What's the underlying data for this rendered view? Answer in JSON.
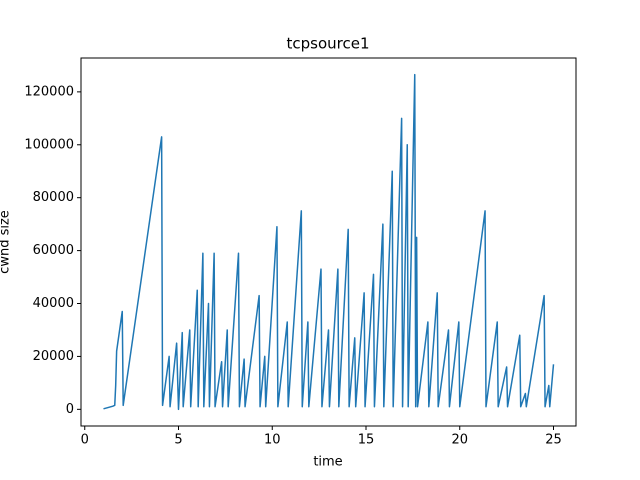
{
  "chart_data": {
    "type": "line",
    "title": "tcpsource1",
    "xlabel": "time",
    "ylabel": "cwnd size",
    "color": "#1f77b4",
    "x": [
      1.0,
      1.5,
      1.6,
      1.65,
      1.7,
      2.0,
      2.05,
      4.1,
      4.15,
      4.5,
      4.55,
      4.9,
      5.0,
      5.2,
      5.25,
      5.6,
      5.65,
      6.0,
      6.05,
      6.3,
      6.35,
      6.6,
      6.65,
      6.9,
      6.95,
      7.3,
      7.35,
      7.6,
      7.65,
      8.2,
      8.25,
      8.5,
      8.55,
      9.3,
      9.35,
      9.6,
      9.65,
      10.25,
      10.3,
      10.8,
      10.85,
      11.55,
      11.6,
      11.9,
      11.95,
      12.6,
      12.65,
      13.0,
      13.05,
      13.5,
      13.55,
      14.05,
      14.1,
      14.4,
      14.45,
      14.9,
      14.95,
      15.4,
      15.45,
      15.9,
      15.95,
      16.4,
      16.45,
      16.9,
      16.95,
      17.2,
      17.25,
      17.6,
      17.65,
      17.7,
      17.75,
      18.3,
      18.35,
      18.8,
      18.85,
      19.4,
      19.45,
      19.95,
      20.0,
      21.35,
      21.4,
      22.0,
      22.05,
      22.5,
      22.55,
      23.2,
      23.25,
      23.5,
      23.55,
      24.5,
      24.55,
      24.75,
      24.8,
      25.0
    ],
    "values": [
      200,
      1200,
      1500,
      9000,
      22000,
      37000,
      1500,
      103000,
      1500,
      20000,
      1000,
      25000,
      0,
      29000,
      1000,
      30000,
      1000,
      45000,
      1000,
      59000,
      1000,
      40000,
      1000,
      59000,
      1000,
      18000,
      1000,
      30000,
      1000,
      59000,
      1000,
      19000,
      1000,
      43000,
      1000,
      20000,
      1000,
      69000,
      1000,
      33000,
      1000,
      75000,
      1000,
      33000,
      1000,
      53000,
      1000,
      30000,
      1000,
      53000,
      1000,
      68000,
      1000,
      27000,
      1000,
      44000,
      1000,
      51000,
      1000,
      70000,
      1000,
      90000,
      1000,
      110000,
      1000,
      100000,
      1000,
      126500,
      1000,
      65000,
      1000,
      33000,
      1000,
      44000,
      1000,
      30000,
      1000,
      33000,
      1000,
      75000,
      1000,
      33000,
      1000,
      16000,
      1000,
      28000,
      1000,
      6000,
      1000,
      43000,
      1000,
      9000,
      1000,
      17000
    ],
    "xlim": [
      -0.2,
      26.2
    ],
    "ylim": [
      -6300,
      132800
    ],
    "xticks": [
      0,
      5,
      10,
      15,
      20,
      25
    ],
    "yticks": [
      0,
      20000,
      40000,
      60000,
      80000,
      100000,
      120000
    ]
  }
}
